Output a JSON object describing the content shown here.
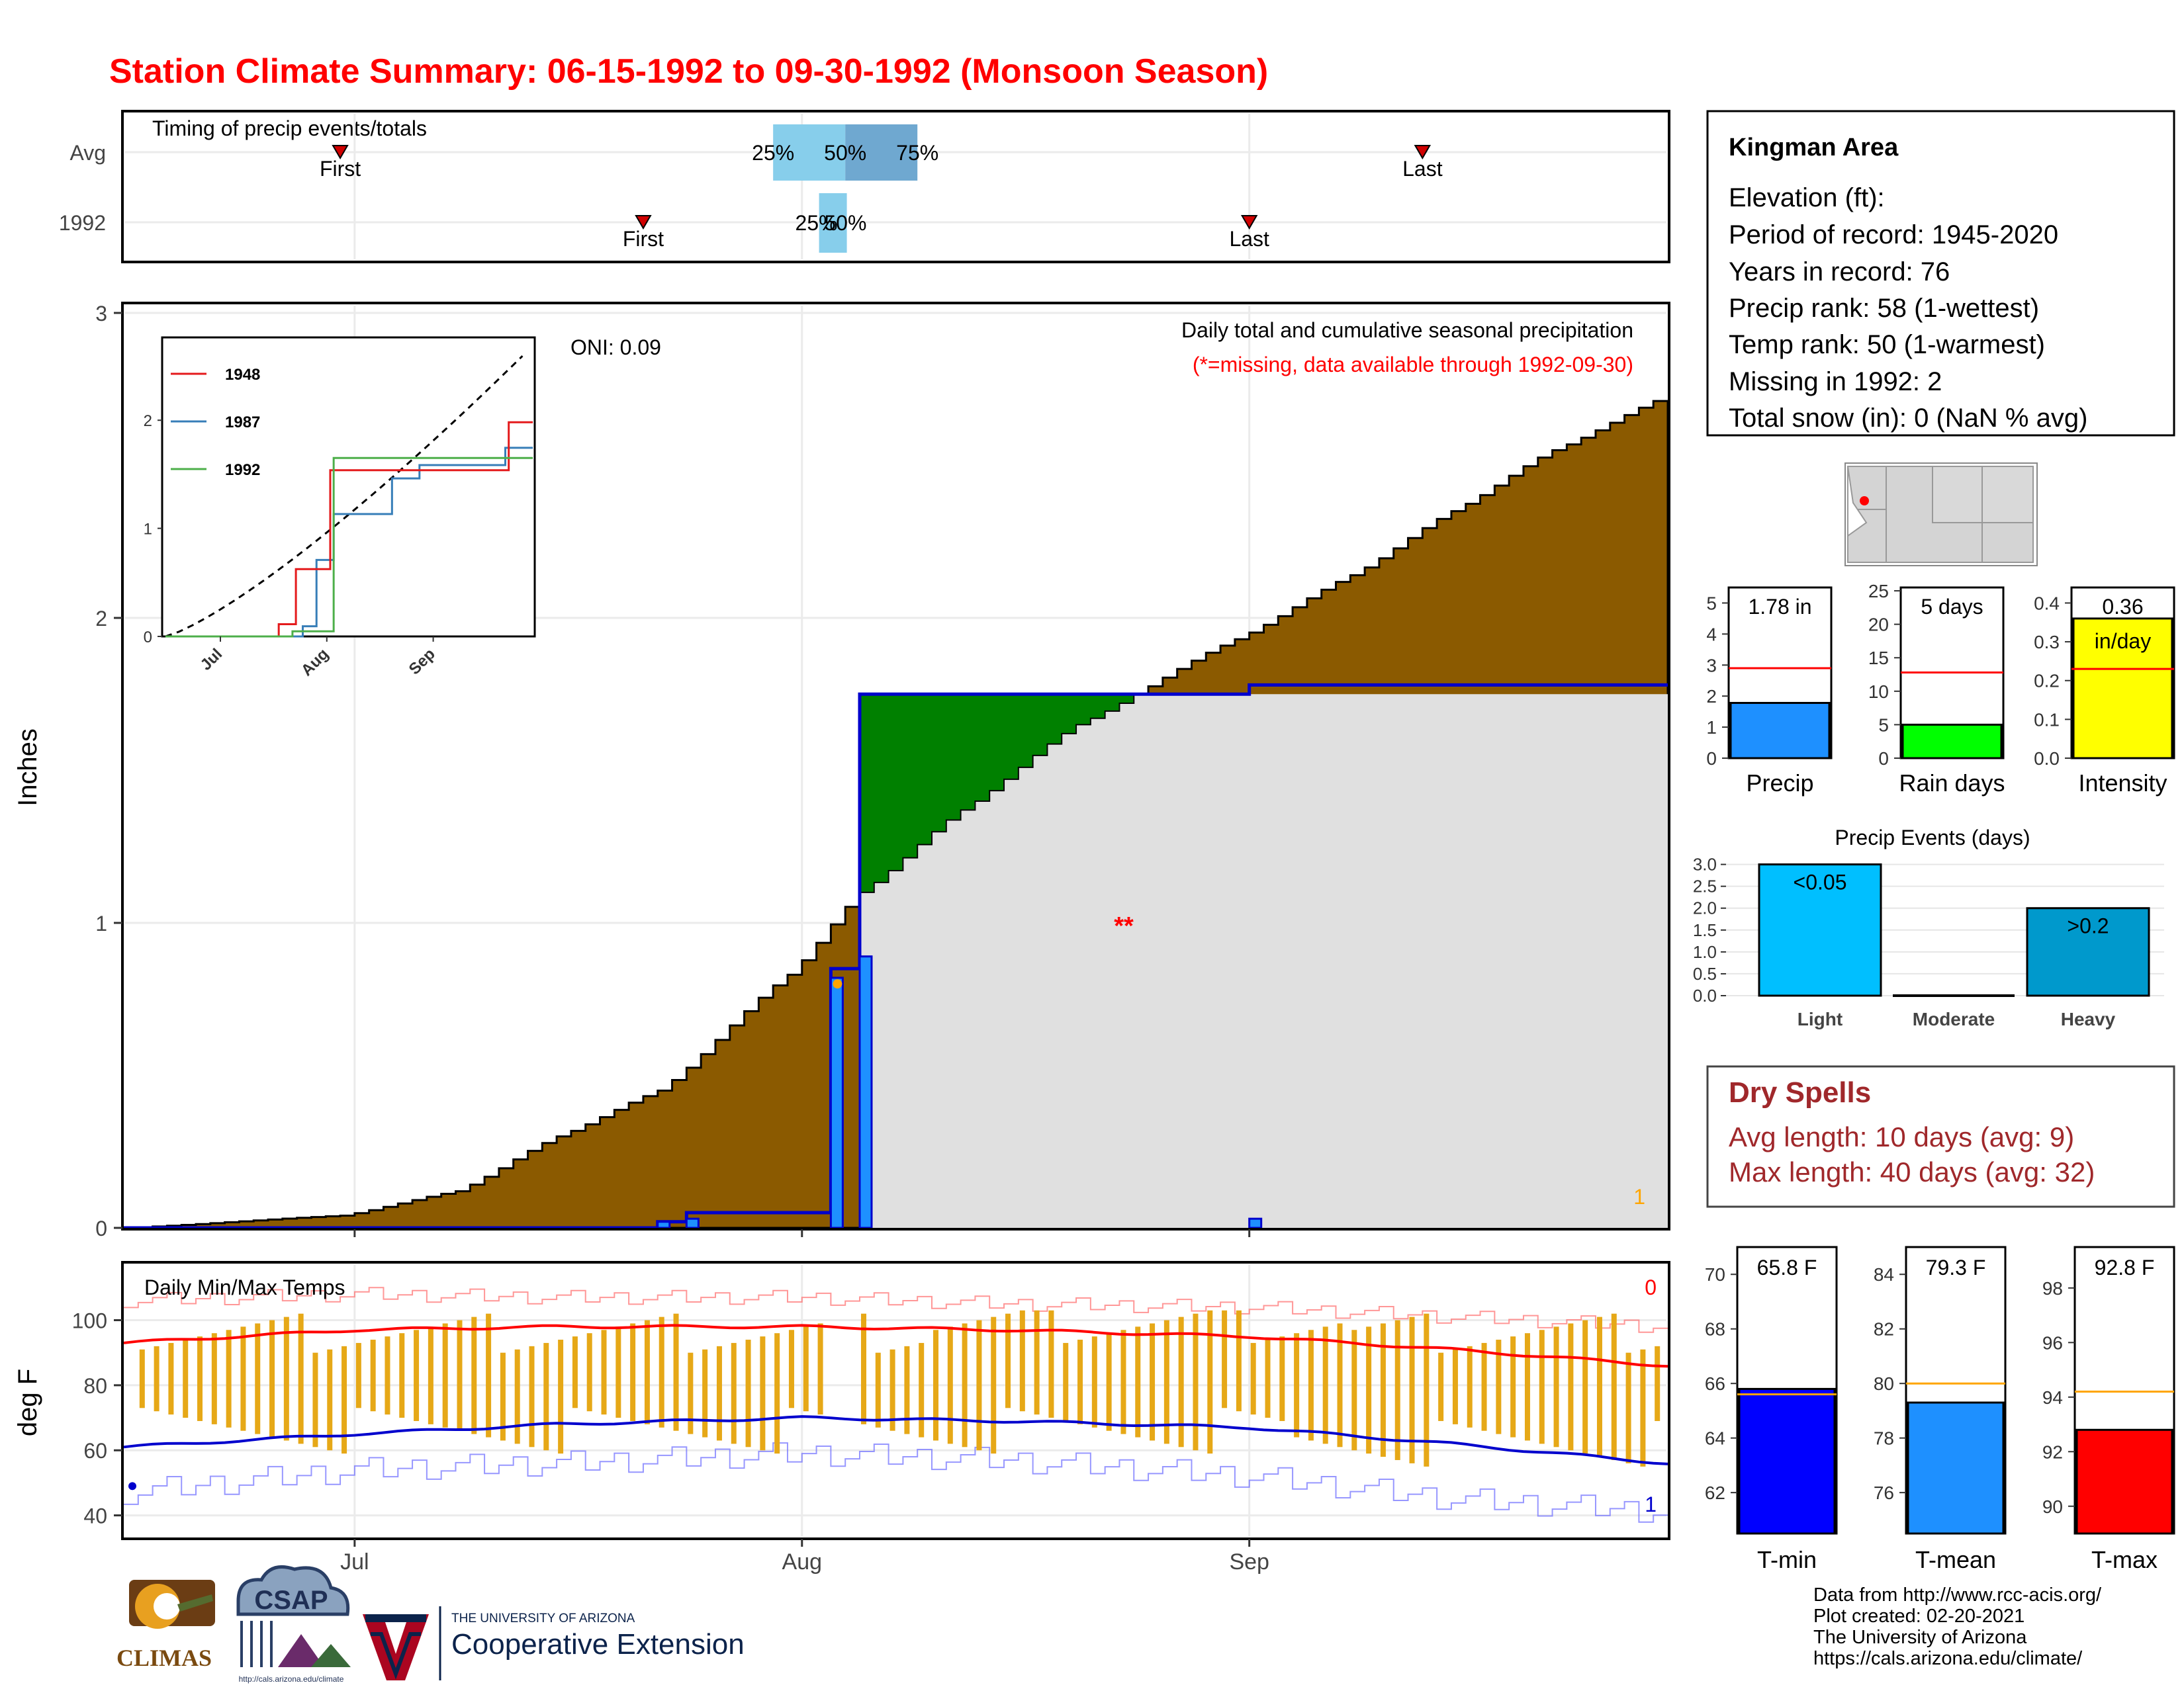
{
  "title": "Station Climate Summary: 06-15-1992 to 09-30-1992 (Monsoon Season)",
  "colors": {
    "title": "#ff0000",
    "cum_avg_fill": "#8b5a00",
    "cum_year_fill": "#008000",
    "cum_year_line": "#0000cd",
    "daily_bar": "#1e90ff",
    "missing_bg": "#e0e0e0",
    "tmax_line": "#ff0000",
    "tmin_line": "#0000cd",
    "range_bar": "#e6a817",
    "precip_bar": "#1e90ff",
    "raindays_bar": "#00ff00",
    "intensity_bar": "#ffff00",
    "light_bar": "#00bfff",
    "heavy_bar": "#0099cc",
    "tmin_bar": "#0000ff",
    "tmean_bar": "#1e90ff",
    "tmax_bar": "#ff0000",
    "avg_ref": "#ff0000",
    "temp_avg_ref": "#ffa500",
    "quartile_light": "#87ceeb",
    "quartile_dark": "#6fa8d0",
    "dry_spells": "#a0282b"
  },
  "timing": {
    "title": "Timing of precip events/totals",
    "rows": [
      "Avg",
      "1992"
    ],
    "avg": {
      "first": "Jun 30",
      "q25": "Jul 30",
      "q50": "Aug 4",
      "q75": "Aug 9",
      "last": "Sep 13"
    },
    "year": {
      "first": "Jul 21",
      "q25": "Aug 2",
      "q50": "Aug 3",
      "last": "Sep 1"
    },
    "first_label": "First",
    "last_label": "Last",
    "q25_label": "25%",
    "q50_label": "50%",
    "q75_label": "75%"
  },
  "main": {
    "annotation_title": "Daily total and cumulative seasonal precipitation",
    "annotation_missing": "(*=missing, data available through 1992-09-30)",
    "oni": "ONI: 0.09",
    "missing_marker": "**",
    "missing_count": "1",
    "ylabel": "Inches",
    "yticks": [
      "0",
      "1",
      "2",
      "3"
    ]
  },
  "temps": {
    "title": "Daily Min/Max Temps",
    "ylabel": "deg F",
    "yticks": [
      "40",
      "60",
      "80",
      "100"
    ],
    "missing_max": "0",
    "missing_min": "1"
  },
  "xticks": [
    "Jul",
    "Aug",
    "Sep"
  ],
  "inset": {
    "legend": [
      "1948",
      "1987",
      "1992"
    ],
    "yticks": [
      "0",
      "1",
      "2"
    ],
    "xticks": [
      "Jul",
      "Aug",
      "Sep"
    ]
  },
  "station": {
    "name": "Kingman Area",
    "lines": [
      "Elevation (ft):",
      "Period of record: 1945-2020",
      "Years in record: 76",
      "Precip rank: 58 (1-wettest)",
      "Temp rank: 50 (1-warmest)",
      "Missing in 1992: 2",
      "Total snow (in): 0 (NaN % avg)"
    ]
  },
  "mini_bars": [
    {
      "label": "Precip",
      "value_text": "1.78 in",
      "value": 1.78,
      "avg": 2.9,
      "ymax": 5.5,
      "yticks": [
        "0",
        "1",
        "2",
        "3",
        "4",
        "5"
      ]
    },
    {
      "label": "Rain days",
      "value_text": "5 days",
      "value": 5,
      "avg": 12.8,
      "ymax": 25.5,
      "yticks": [
        "0",
        "5",
        "10",
        "15",
        "20",
        "25"
      ]
    },
    {
      "label": "Intensity",
      "value_text": "0.36",
      "unit_text": "in/day",
      "value": 0.36,
      "avg": 0.23,
      "ymax": 0.44,
      "yticks": [
        "0.0",
        "0.1",
        "0.2",
        "0.3",
        "0.4"
      ]
    }
  ],
  "events": {
    "title": "Precip Events (days)",
    "categories": [
      "Light",
      "Moderate",
      "Heavy"
    ],
    "labels": [
      "<0.05",
      "",
      ">0.2"
    ],
    "values": [
      3,
      0,
      2
    ],
    "yticks": [
      "0.0",
      "0.5",
      "1.0",
      "1.5",
      "2.0",
      "2.5",
      "3.0"
    ]
  },
  "dry_spells": {
    "title": "Dry Spells",
    "avg": "Avg length: 10 days (avg: 9)",
    "max": "Max length: 40 days (avg: 32)"
  },
  "temp_bars": [
    {
      "label": "T-min",
      "value_text": "65.8 F",
      "value": 65.8,
      "avg": 65.6,
      "ymin": 60.5,
      "ymax": 71,
      "yticks": [
        "62",
        "64",
        "66",
        "68",
        "70"
      ]
    },
    {
      "label": "T-mean",
      "value_text": "79.3 F",
      "value": 79.3,
      "avg": 80.0,
      "ymin": 74.5,
      "ymax": 85,
      "yticks": [
        "76",
        "78",
        "80",
        "82",
        "84"
      ]
    },
    {
      "label": "T-max",
      "value_text": "92.8 F",
      "value": 92.8,
      "avg": 94.2,
      "ymin": 89,
      "ymax": 99.5,
      "yticks": [
        "90",
        "92",
        "94",
        "96",
        "98"
      ]
    }
  ],
  "credits": [
    "Data from http://www.rcc-acis.org/",
    "Plot created: 02-20-2021",
    "The University of Arizona",
    "https://cals.arizona.edu/climate/"
  ],
  "logos": {
    "climas": "CLIMAS",
    "csap": "CSAP",
    "csap_url": "http://cals.arizona.edu/climate",
    "ua_top": "THE UNIVERSITY OF ARIZONA",
    "ua_bottom": "Cooperative Extension"
  },
  "chart_data": [
    {
      "type": "area",
      "title": "Daily total and cumulative seasonal precipitation",
      "ylabel": "Inches",
      "ylim": [
        0,
        3
      ],
      "x": [
        "06-15",
        "06-30",
        "07-08",
        "07-15",
        "07-22",
        "07-31",
        "08-05",
        "08-12",
        "08-20",
        "08-31",
        "09-08",
        "09-15",
        "09-22",
        "09-30"
      ],
      "series": [
        {
          "name": "avg cumulative",
          "values": [
            0.0,
            0.04,
            0.12,
            0.3,
            0.45,
            0.83,
            1.1,
            1.37,
            1.65,
            1.93,
            2.14,
            2.35,
            2.55,
            2.73
          ]
        },
        {
          "name": "1992 cumulative",
          "values": [
            0.0,
            0.0,
            0.0,
            0.0,
            0.04,
            0.05,
            1.75,
            1.75,
            1.75,
            1.75,
            1.78,
            1.78,
            1.78,
            1.78
          ]
        }
      ],
      "daily_events": [
        {
          "date": "07-22",
          "value": 0.02
        },
        {
          "date": "07-24",
          "value": 0.03
        },
        {
          "date": "08-03",
          "value": 0.82
        },
        {
          "date": "08-05",
          "value": 0.89
        },
        {
          "date": "09-01",
          "value": 0.03
        }
      ]
    },
    {
      "type": "line",
      "title": "Daily Min/Max Temps",
      "ylabel": "deg F",
      "ylim": [
        35,
        115
      ],
      "x": [
        "06-15",
        "07-01",
        "07-15",
        "08-01",
        "08-15",
        "09-01",
        "09-15",
        "09-30"
      ],
      "series": [
        {
          "name": "avg max",
          "values": [
            93,
            97,
            98,
            98,
            97,
            95,
            91,
            86
          ]
        },
        {
          "name": "avg min",
          "values": [
            61,
            65,
            68,
            70,
            69,
            67,
            62,
            56
          ]
        },
        {
          "name": "record max",
          "values": [
            106,
            108,
            107,
            107,
            105,
            104,
            101,
            98
          ]
        },
        {
          "name": "record min",
          "values": [
            47,
            54,
            56,
            59,
            57,
            52,
            45,
            41
          ]
        }
      ],
      "daily_range_1992": {
        "min_low": 52,
        "max_high": 103,
        "typical_low": 67,
        "typical_high": 96
      }
    },
    {
      "type": "bar",
      "title": "Precip Events (days)",
      "categories": [
        "Light",
        "Moderate",
        "Heavy"
      ],
      "values": [
        3,
        0,
        2
      ]
    },
    {
      "type": "bar",
      "categories": [
        "Precip",
        "Rain days",
        "Intensity",
        "T-min",
        "T-mean",
        "T-max"
      ],
      "values": [
        1.78,
        5,
        0.36,
        65.8,
        79.3,
        92.8
      ]
    }
  ]
}
